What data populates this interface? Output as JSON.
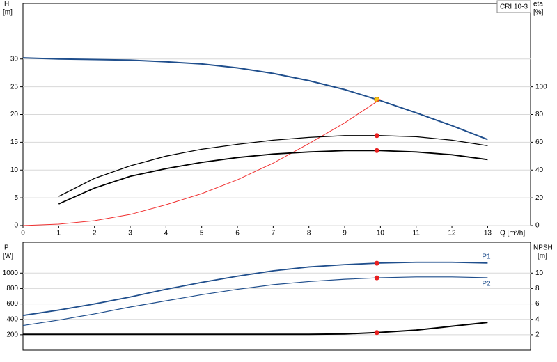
{
  "chart_data": [
    {
      "type": "line",
      "legend": "CRI 10-3",
      "ylabel": "H",
      "yunit": "[m]",
      "y2label": "eta",
      "y2unit": "[%]",
      "xlabel": "Q [m³/h]",
      "x": [
        0,
        1,
        2,
        3,
        4,
        5,
        6,
        7,
        8,
        9,
        10,
        11,
        12,
        13
      ],
      "xlim": [
        0,
        14.2
      ],
      "xticks": [
        0,
        1,
        2,
        3,
        4,
        5,
        6,
        7,
        8,
        9,
        10,
        11,
        12,
        13
      ],
      "ylim": [
        0,
        40
      ],
      "yticks": [
        0,
        5,
        10,
        15,
        20,
        25,
        30
      ],
      "y2lim": [
        0,
        160
      ],
      "y2ticks": [
        0,
        20,
        40,
        60,
        80,
        100
      ],
      "grid": true,
      "duty_point_x": 9.9,
      "series": [
        {
          "color": "#1f4e8c",
          "width": 2,
          "marker": "#f5c518",
          "values": [
            30.2,
            30,
            29.9,
            29.8,
            29.5,
            29.1,
            28.4,
            27.4,
            26.1,
            24.5,
            22.5,
            20.3,
            18,
            15.5
          ]
        },
        {
          "color": "#f03030",
          "width": 1,
          "axis": "y2",
          "values": [
            0,
            1,
            3.5,
            8,
            15,
            23,
            33,
            45,
            59,
            74,
            91,
            null,
            null,
            null
          ]
        },
        {
          "color": "#000000",
          "width": 1.3,
          "axis": "y2",
          "marker": "#e82020",
          "values": [
            null,
            21,
            34,
            43,
            50,
            55,
            58.5,
            61.5,
            63.5,
            64.8,
            64.8,
            64,
            61.5,
            57.5
          ]
        },
        {
          "color": "#000000",
          "width": 1.8,
          "axis": "y2",
          "marker": "#e82020",
          "values": [
            null,
            15.6,
            27,
            35.5,
            41,
            45.5,
            49,
            51.5,
            53,
            54,
            54,
            53,
            51,
            47.5
          ]
        }
      ]
    },
    {
      "type": "line",
      "ylabel": "P",
      "yunit": "[W]",
      "y2label": "NPSH",
      "y2unit": "[m]",
      "x": [
        0,
        1,
        2,
        3,
        4,
        5,
        6,
        7,
        8,
        9,
        10,
        11,
        12,
        13
      ],
      "xlim": [
        0,
        14.2
      ],
      "ylim": [
        0,
        1400
      ],
      "yticks": [
        200,
        400,
        600,
        800,
        1000
      ],
      "y2lim": [
        0,
        14
      ],
      "y2ticks": [
        2,
        4,
        6,
        8,
        10
      ],
      "grid": true,
      "duty_point_x": 9.9,
      "series": [
        {
          "name": "P1",
          "color": "#1f4e8c",
          "width": 1.8,
          "marker": "#e82020",
          "values": [
            450,
            520,
            600,
            690,
            790,
            880,
            960,
            1030,
            1080,
            1110,
            1130,
            1140,
            1140,
            1130
          ]
        },
        {
          "name": "P2",
          "color": "#1f4e8c",
          "width": 1.2,
          "marker": "#e82020",
          "values": [
            320,
            390,
            470,
            560,
            640,
            720,
            790,
            850,
            890,
            920,
            940,
            950,
            950,
            940
          ]
        },
        {
          "color": "#000000",
          "width": 2,
          "axis": "y2",
          "marker": "#e82020",
          "values": [
            2.05,
            2.05,
            2.05,
            2.05,
            2.05,
            2.05,
            2.05,
            2.05,
            2.05,
            2.1,
            2.3,
            2.6,
            3.1,
            3.6
          ]
        }
      ]
    }
  ]
}
